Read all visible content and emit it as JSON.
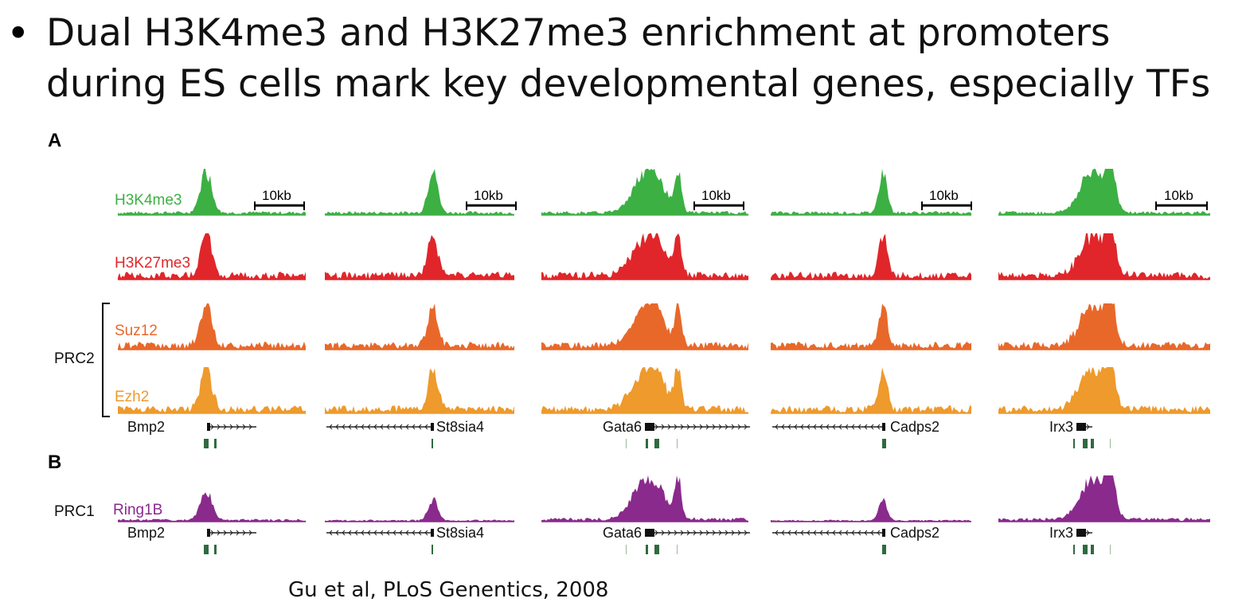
{
  "slide": {
    "bullet": "•",
    "title": "Dual H3K4me3 and H3K27me3 enrichment at promoters during ES cells mark key developmental genes, especially TFs",
    "citation": "Gu et al, PLoS Genentics, 2008"
  },
  "figure": {
    "panel_a": "A",
    "panel_b": "B",
    "prc2_label": "PRC2",
    "prc1_label": "PRC1",
    "scale_bar": "10kb",
    "tracks": [
      {
        "name": "H3K4me3",
        "color": "#3cb043"
      },
      {
        "name": "H3K27me3",
        "color": "#e0262a"
      },
      {
        "name": "Suz12",
        "color": "#e8682a"
      },
      {
        "name": "Ezh2",
        "color": "#ee9a2c"
      },
      {
        "name": "Ring1B",
        "color": "#8a2a8c"
      }
    ],
    "loci": [
      {
        "gene": "Bmp2",
        "gene_side": "left",
        "strand": "+"
      },
      {
        "gene": "St8sia4",
        "gene_side": "right",
        "strand": "-"
      },
      {
        "gene": "Gata6",
        "gene_side": "left",
        "strand": "+"
      },
      {
        "gene": "Cadps2",
        "gene_side": "right",
        "strand": "-"
      },
      {
        "gene": "Irx3",
        "gene_side": "left",
        "strand": "+"
      }
    ]
  }
}
